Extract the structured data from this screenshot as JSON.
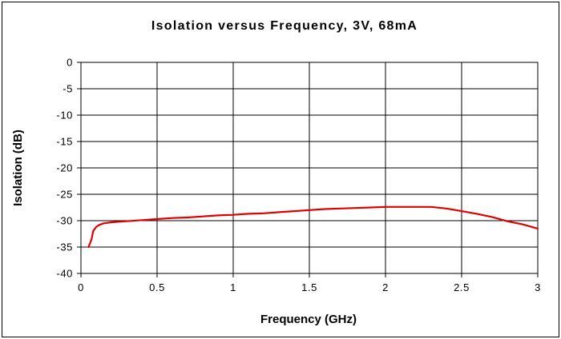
{
  "chart_data": {
    "type": "line",
    "title": "Isolation versus Frequency, 3V, 68mA",
    "xlabel": "Frequency (GHz)",
    "ylabel": "Isolation (dB)",
    "xlim": [
      0,
      3
    ],
    "ylim": [
      -40,
      0
    ],
    "x_ticks": [
      0,
      0.5,
      1,
      1.5,
      2,
      2.5,
      3
    ],
    "y_ticks": [
      0,
      -5,
      -10,
      -15,
      -20,
      -25,
      -30,
      -35,
      -40
    ],
    "x_tick_labels": [
      "0",
      "0.5",
      "1",
      "1.5",
      "2",
      "2.5",
      "3"
    ],
    "y_tick_labels": [
      "0",
      "-5",
      "-10",
      "-15",
      "-20",
      "-25",
      "-30",
      "-35",
      "-40"
    ],
    "grid": true,
    "legend": "none",
    "series": [
      {
        "color": "#e00000",
        "x": [
          0.05,
          0.07,
          0.08,
          0.1,
          0.12,
          0.15,
          0.2,
          0.25,
          0.3,
          0.4,
          0.5,
          0.6,
          0.7,
          0.8,
          0.9,
          1.0,
          1.1,
          1.2,
          1.3,
          1.4,
          1.5,
          1.6,
          1.7,
          1.8,
          1.9,
          2.0,
          2.1,
          2.2,
          2.3,
          2.4,
          2.5,
          2.6,
          2.7,
          2.8,
          2.9,
          3.0
        ],
        "y": [
          -35.0,
          -33.5,
          -32.0,
          -31.2,
          -30.8,
          -30.5,
          -30.3,
          -30.2,
          -30.1,
          -29.9,
          -29.7,
          -29.5,
          -29.4,
          -29.2,
          -29.0,
          -28.9,
          -28.7,
          -28.6,
          -28.4,
          -28.2,
          -28.0,
          -27.8,
          -27.7,
          -27.6,
          -27.5,
          -27.4,
          -27.4,
          -27.4,
          -27.4,
          -27.7,
          -28.2,
          -28.7,
          -29.3,
          -30.1,
          -30.7,
          -31.5
        ]
      }
    ]
  }
}
